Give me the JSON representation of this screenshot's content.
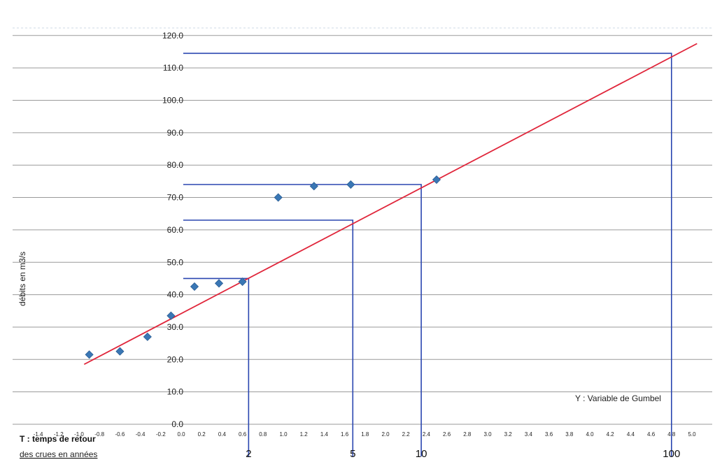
{
  "chart_data": {
    "type": "scatter",
    "title": "",
    "xlabel": "Y : Variable de Gumbel",
    "ylabel": "débits en m3/s",
    "return_period_label_line1": "T : temps de retour",
    "return_period_label_line2": "des crues en années",
    "xlim": [
      -1.4,
      5.0
    ],
    "ylim": [
      0,
      120
    ],
    "grid": true,
    "y_ticks": [
      "0.0",
      "10.0",
      "20.0",
      "30.0",
      "40.0",
      "50.0",
      "60.0",
      "70.0",
      "80.0",
      "90.0",
      "100.0",
      "110.0",
      "120.0"
    ],
    "x_ticks": [
      "-1.4",
      "-1.2",
      "-1.0",
      "-0.8",
      "-0.6",
      "-0.4",
      "-0.2",
      "0.0",
      "0.2",
      "0.4",
      "0.6",
      "0.8",
      "1.0",
      "1.2",
      "1.4",
      "1.6",
      "1.8",
      "2.0",
      "2.2",
      "2.4",
      "2.6",
      "2.8",
      "3.0",
      "3.2",
      "3.4",
      "3.6",
      "3.8",
      "4.0",
      "4.2",
      "4.4",
      "4.6",
      "4.8",
      "5.0"
    ],
    "points": [
      {
        "x": -0.9,
        "y": 21.5
      },
      {
        "x": -0.6,
        "y": 22.5
      },
      {
        "x": -0.33,
        "y": 27.0
      },
      {
        "x": -0.1,
        "y": 33.5
      },
      {
        "x": 0.13,
        "y": 42.5
      },
      {
        "x": 0.37,
        "y": 43.5
      },
      {
        "x": 0.6,
        "y": 44.0
      },
      {
        "x": 0.95,
        "y": 70.0
      },
      {
        "x": 1.3,
        "y": 73.5
      },
      {
        "x": 1.66,
        "y": 74.0
      },
      {
        "x": 2.5,
        "y": 75.5
      }
    ],
    "fit_line": [
      {
        "x": -0.95,
        "y": 18.5
      },
      {
        "x": 5.05,
        "y": 117.5
      }
    ],
    "return_periods": [
      {
        "label": "2",
        "x": 0.66,
        "y": 45.0
      },
      {
        "label": "5",
        "x": 1.68,
        "y": 63.0
      },
      {
        "label": "10",
        "x": 2.35,
        "y": 74.0
      },
      {
        "label": "100",
        "x": 4.8,
        "y": 114.5
      }
    ],
    "colors": {
      "points": "#3a77b5",
      "fit": "#e0253a",
      "guides": "#2a46b0",
      "grid": "#9a9a9a"
    }
  }
}
